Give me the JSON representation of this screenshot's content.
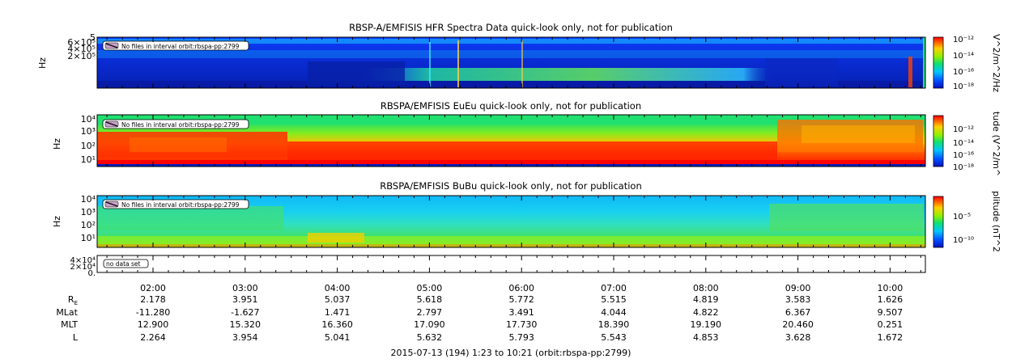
{
  "chart_data": [
    {
      "type": "heatmap",
      "title": "RBSP-A/EMFISIS  HFR Spectra Data quick-look only, not for publication",
      "ylabel": "Hz",
      "y_tick_labels": [
        "5",
        "6×10⁵",
        "4×10⁵",
        "2×10⁵"
      ],
      "colorbar_label": "V^2/m^2/Hz",
      "colorbar_ticks": [
        "10⁻¹²",
        "10⁻¹⁴",
        "10⁻¹⁶",
        "10⁻¹⁸"
      ],
      "annotation": "No files in interval orbit:rbspa-pp:2799"
    },
    {
      "type": "heatmap",
      "title": "RBSPA/EMFISIS  EuEu quick-look only, not for publication",
      "ylabel": "Hz",
      "y_tick_labels": [
        "10⁴",
        "10³",
        "10²",
        "10¹"
      ],
      "colorbar_label": "tude (V^2/m^",
      "colorbar_ticks": [
        "10⁻¹²",
        "10⁻¹⁴",
        "10⁻¹⁶",
        "10⁻¹⁸"
      ],
      "annotation": "No files in interval orbit:rbspa-pp:2799"
    },
    {
      "type": "heatmap",
      "title": "RBSPA/EMFISIS  BuBu quick-look only, not for publication",
      "ylabel": "Hz",
      "y_tick_labels": [
        "10⁴",
        "10³",
        "10²",
        "10¹"
      ],
      "colorbar_label": "plitude (nT^2",
      "colorbar_ticks": [
        "10⁻⁵",
        "10⁻¹⁰"
      ],
      "annotation": "No files in interval orbit:rbspa-pp:2799"
    },
    {
      "type": "line",
      "y_tick_labels": [
        "4×10⁴",
        "2×10⁴",
        "0."
      ],
      "annotation": "no data set"
    }
  ],
  "time_axis": {
    "ticks": [
      "02:00",
      "03:00",
      "04:00",
      "05:00",
      "06:00",
      "07:00",
      "08:00",
      "09:00",
      "10:00"
    ],
    "rows": [
      {
        "label": "R",
        "label_sub": "E",
        "values": [
          "2.178",
          "3.951",
          "5.037",
          "5.618",
          "5.772",
          "5.515",
          "4.819",
          "3.583",
          "1.626"
        ]
      },
      {
        "label": "MLat",
        "label_sub": "",
        "values": [
          "-11.280",
          "-1.627",
          "1.471",
          "2.797",
          "3.491",
          "4.044",
          "4.822",
          "6.367",
          "9.507"
        ]
      },
      {
        "label": "MLT",
        "label_sub": "",
        "values": [
          "12.900",
          "15.320",
          "16.360",
          "17.090",
          "17.730",
          "18.390",
          "19.190",
          "20.460",
          "0.251"
        ]
      },
      {
        "label": "L",
        "label_sub": "",
        "values": [
          "2.264",
          "3.954",
          "5.041",
          "5.632",
          "5.793",
          "5.543",
          "4.853",
          "3.628",
          "1.672"
        ]
      }
    ],
    "footer": "2015-07-13 (194) 1:23 to 10:21 (orbit:rbspa-pp:2799)"
  }
}
